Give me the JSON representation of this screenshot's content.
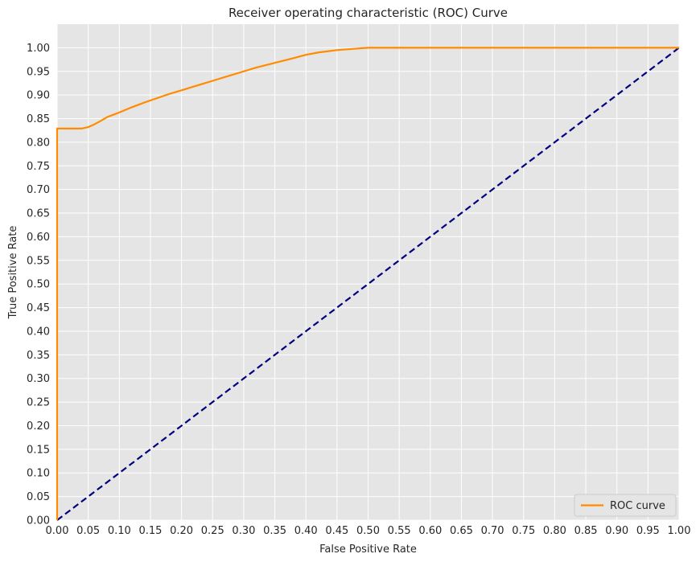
{
  "chart_data": {
    "type": "line",
    "title": "Receiver operating characteristic (ROC) Curve",
    "xlabel": "False Positive Rate",
    "ylabel": "True Positive Rate",
    "xlim": [
      0,
      1
    ],
    "ylim": [
      0,
      1.05
    ],
    "x_ticks": [
      "0.00",
      "0.05",
      "0.10",
      "0.15",
      "0.20",
      "0.25",
      "0.30",
      "0.35",
      "0.40",
      "0.45",
      "0.50",
      "0.55",
      "0.60",
      "0.65",
      "0.70",
      "0.75",
      "0.80",
      "0.85",
      "0.90",
      "0.95",
      "1.00"
    ],
    "y_ticks": [
      "0.00",
      "0.05",
      "0.10",
      "0.15",
      "0.20",
      "0.25",
      "0.30",
      "0.35",
      "0.40",
      "0.45",
      "0.50",
      "0.55",
      "0.60",
      "0.65",
      "0.70",
      "0.75",
      "0.80",
      "0.85",
      "0.90",
      "0.95",
      "1.00"
    ],
    "grid": true,
    "legend_position": "lower-right",
    "background_color": "#e5e5e5",
    "grid_color": "#ffffff",
    "series": [
      {
        "name": "ROC curve",
        "color": "#ff8c00",
        "style": "solid",
        "x": [
          0,
          0,
          0.01,
          0.02,
          0.03,
          0.04,
          0.05,
          0.06,
          0.07,
          0.08,
          0.09,
          0.1,
          0.12,
          0.14,
          0.16,
          0.18,
          0.2,
          0.22,
          0.25,
          0.28,
          0.3,
          0.32,
          0.35,
          0.38,
          0.4,
          0.42,
          0.45,
          0.48,
          0.5,
          0.55,
          0.6,
          0.7,
          0.8,
          0.9,
          1.0
        ],
        "y": [
          0,
          0.829,
          0.829,
          0.829,
          0.829,
          0.829,
          0.832,
          0.838,
          0.845,
          0.853,
          0.858,
          0.863,
          0.874,
          0.884,
          0.893,
          0.902,
          0.91,
          0.918,
          0.93,
          0.942,
          0.95,
          0.958,
          0.968,
          0.978,
          0.985,
          0.99,
          0.995,
          0.998,
          1.0,
          1.0,
          1.0,
          1.0,
          1.0,
          1.0,
          1.0
        ]
      },
      {
        "color": "#000080",
        "style": "dashed",
        "x": [
          0,
          1
        ],
        "y": [
          0,
          1
        ]
      }
    ]
  }
}
